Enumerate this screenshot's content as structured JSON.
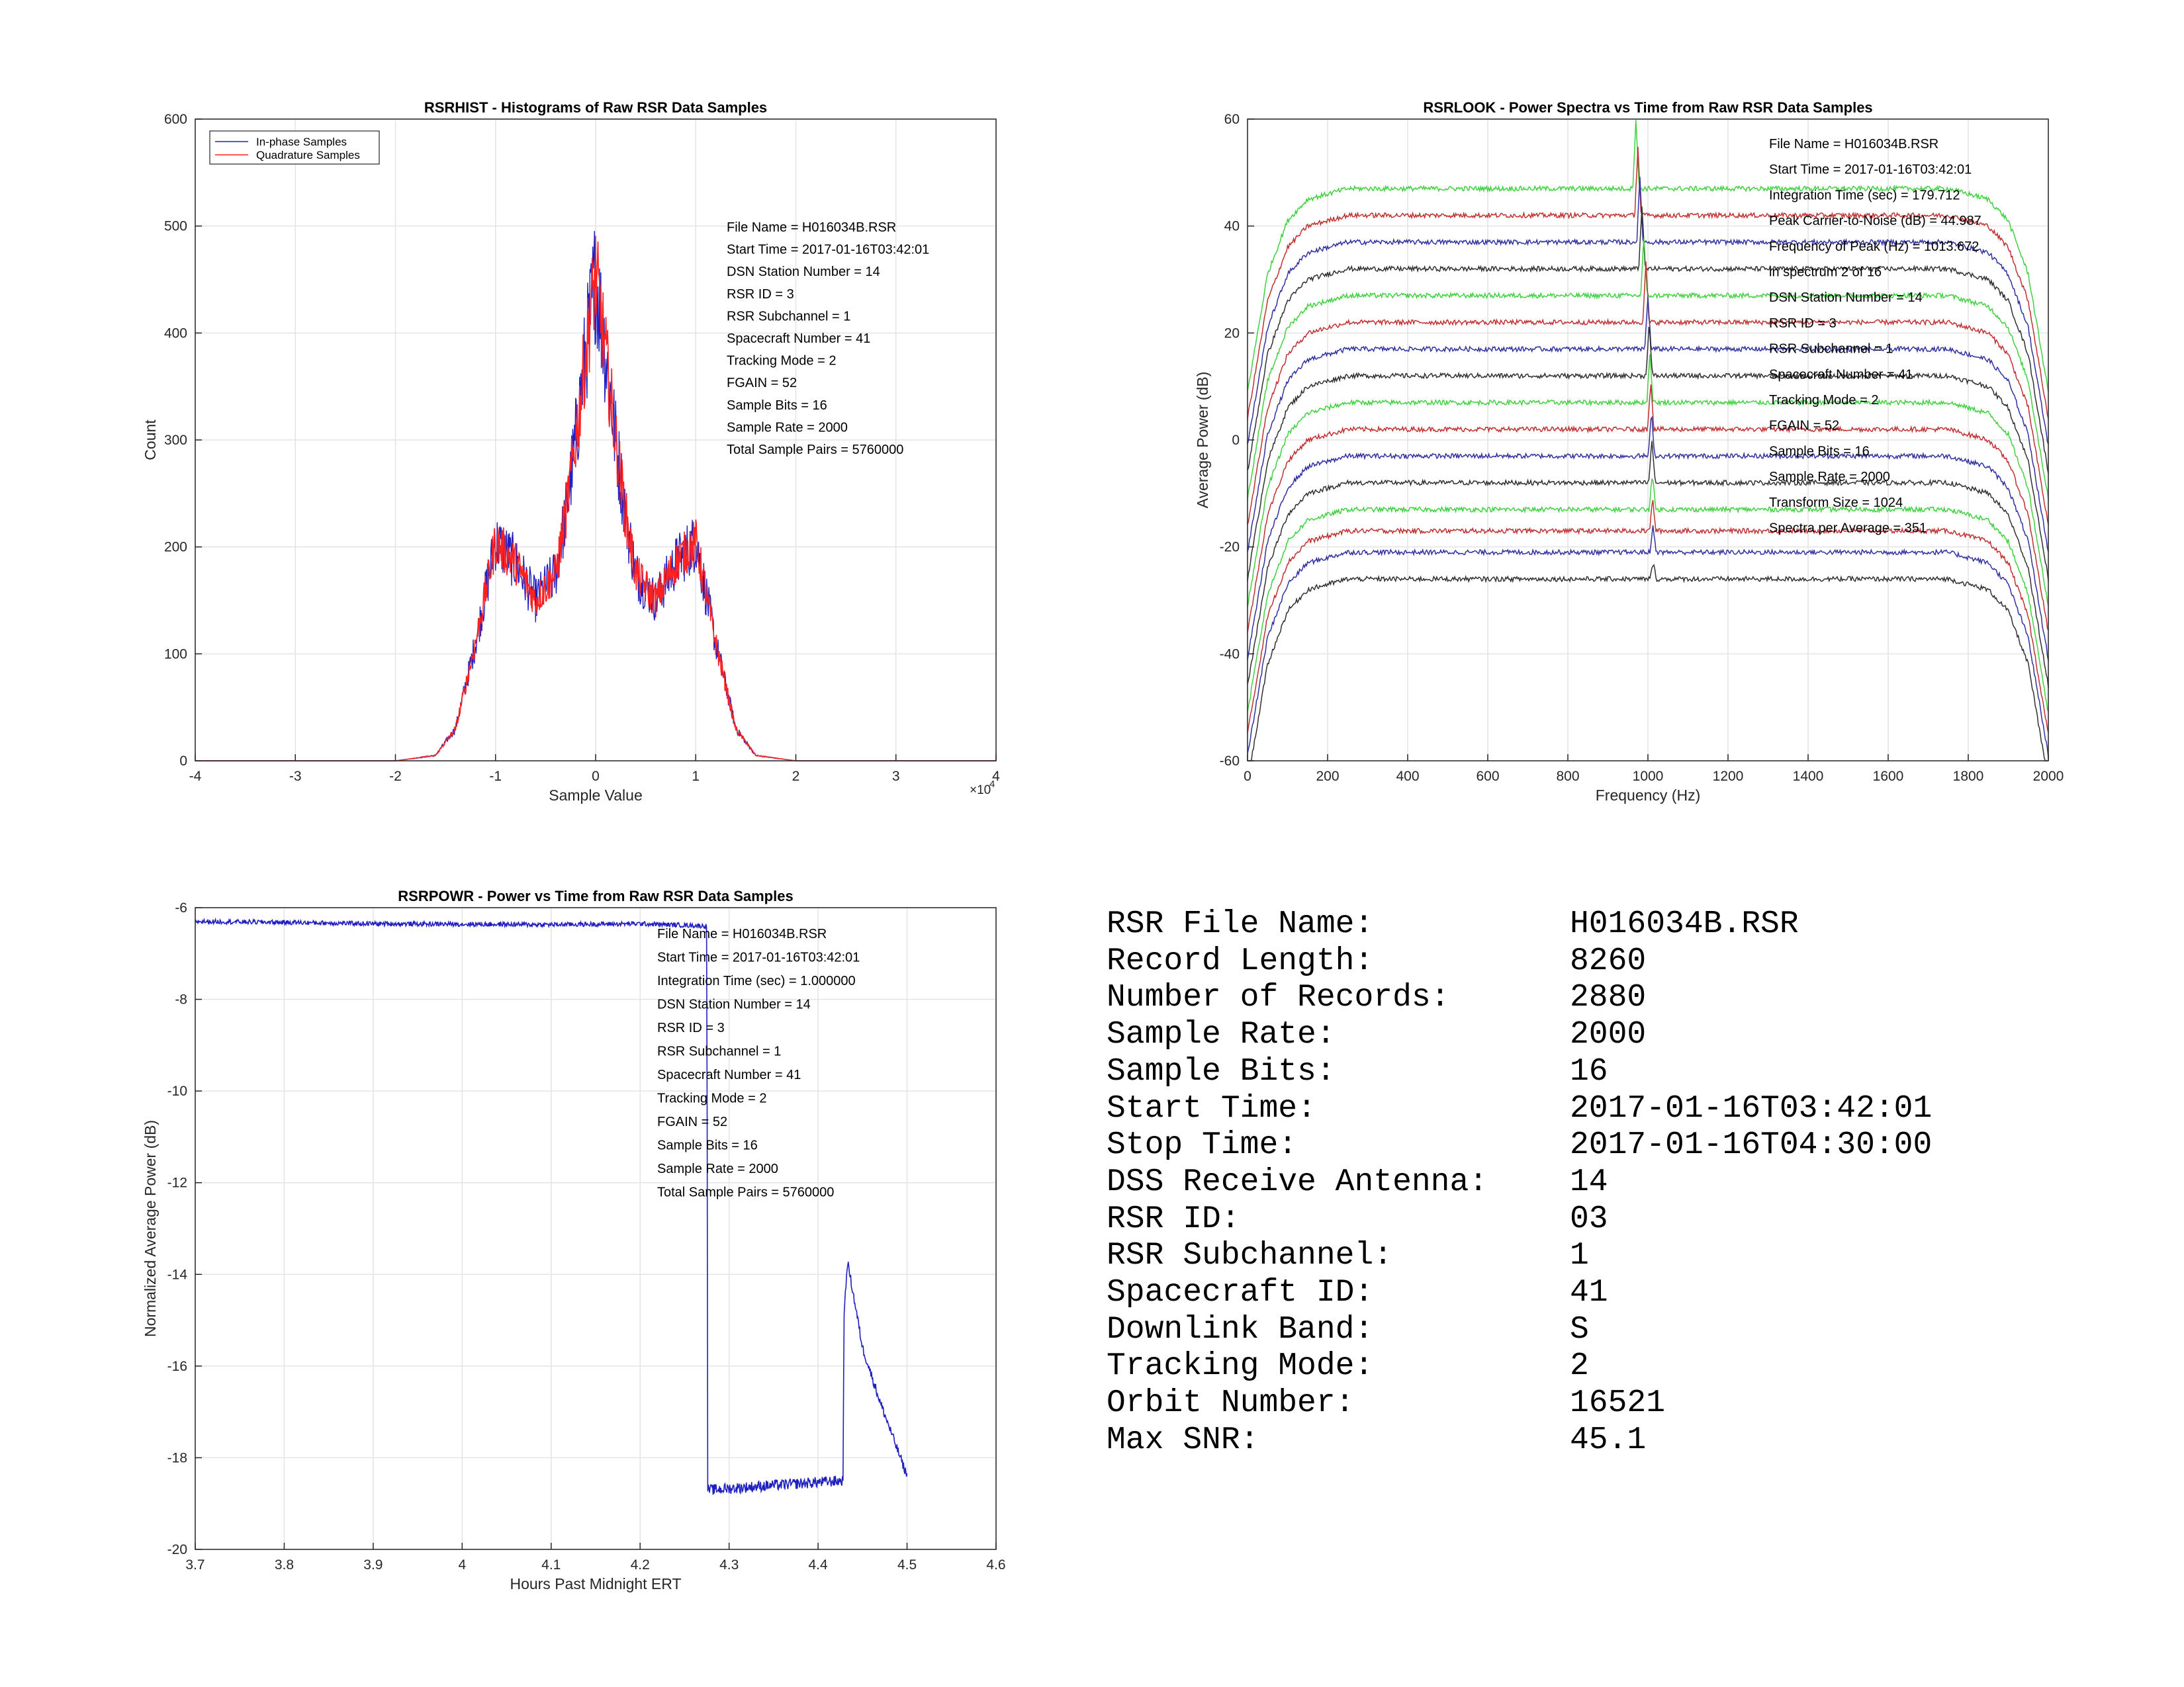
{
  "chart_data": [
    {
      "type": "histogram",
      "title": "RSRHIST - Histograms of Raw RSR Data Samples",
      "xlabel": "Sample Value",
      "ylabel": "Count",
      "x_exponent": "×10",
      "x_exponent_power": "4",
      "xlim": [
        -40000,
        40000
      ],
      "ylim": [
        0,
        600
      ],
      "x_ticks": [
        -40000,
        -30000,
        -20000,
        -10000,
        0,
        10000,
        20000,
        30000,
        40000
      ],
      "x_tick_labels": [
        "-4",
        "-3",
        "-2",
        "-1",
        "0",
        "1",
        "2",
        "3",
        "4"
      ],
      "y_ticks": [
        0,
        100,
        200,
        300,
        400,
        500,
        600
      ],
      "y_tick_labels": [
        "0",
        "100",
        "200",
        "300",
        "400",
        "500",
        "600"
      ],
      "grid": true,
      "legend": {
        "position": "top-left",
        "entries": [
          "In-phase Samples",
          "Quadrature Samples"
        ]
      },
      "series": [
        {
          "name": "In-phase Samples",
          "color": "#2020c0",
          "x": [
            -40000,
            -25000,
            -20000,
            -16000,
            -14000,
            -12000,
            -10000,
            -8000,
            -6000,
            -4000,
            -3000,
            -2000,
            -1000,
            0,
            1000,
            2000,
            3000,
            4000,
            6000,
            8000,
            10000,
            12000,
            14000,
            16000,
            20000,
            25000,
            40000
          ],
          "y": [
            0,
            0,
            0,
            5,
            30,
            110,
            205,
            185,
            150,
            175,
            230,
            300,
            380,
            455,
            380,
            300,
            230,
            175,
            150,
            185,
            205,
            110,
            30,
            5,
            0,
            0,
            0
          ]
        },
        {
          "name": "Quadrature Samples",
          "color": "#ff2020",
          "x": [
            -40000,
            -25000,
            -20000,
            -16000,
            -14000,
            -12000,
            -10000,
            -8000,
            -6000,
            -4000,
            -3000,
            -2000,
            -1000,
            0,
            1000,
            2000,
            3000,
            4000,
            6000,
            8000,
            10000,
            12000,
            14000,
            16000,
            20000,
            25000,
            40000
          ],
          "y": [
            0,
            0,
            0,
            5,
            30,
            110,
            205,
            185,
            150,
            175,
            230,
            300,
            380,
            455,
            380,
            300,
            230,
            175,
            150,
            185,
            205,
            110,
            30,
            5,
            0,
            0,
            0
          ]
        }
      ],
      "annotations": [
        "File Name = H016034B.RSR",
        "Start Time = 2017-01-16T03:42:01",
        "DSN Station Number = 14",
        "RSR ID = 3",
        "RSR Subchannel = 1",
        "Spacecraft Number = 41",
        "Tracking Mode = 2",
        "FGAIN = 52",
        "Sample Bits = 16",
        "Sample Rate = 2000",
        "Total Sample Pairs = 5760000"
      ]
    },
    {
      "type": "line",
      "title": "RSRLOOK - Power Spectra vs Time from Raw RSR Data Samples",
      "xlabel": "Frequency (Hz)",
      "ylabel": "Average Power (dB)",
      "xlim": [
        0,
        2000
      ],
      "ylim": [
        -60,
        60
      ],
      "x_ticks": [
        0,
        200,
        400,
        600,
        800,
        1000,
        1200,
        1400,
        1600,
        1800,
        2000
      ],
      "x_tick_labels": [
        "0",
        "200",
        "400",
        "600",
        "800",
        "1000",
        "1200",
        "1400",
        "1600",
        "1800",
        "2000"
      ],
      "y_ticks": [
        -60,
        -40,
        -20,
        0,
        20,
        40,
        60
      ],
      "y_tick_labels": [
        "-60",
        "-40",
        "-20",
        "0",
        "20",
        "40",
        "60"
      ],
      "grid": true,
      "series_shape": {
        "x": [
          0,
          50,
          100,
          150,
          250,
          1750,
          1850,
          1900,
          1950,
          2000
        ],
        "y_offset": [
          -38,
          -16,
          -6,
          -2,
          0,
          0,
          -2,
          -6,
          -16,
          -38
        ]
      },
      "series": [
        {
          "color": "#40d040",
          "level": 47,
          "peak_x": 970,
          "peak_height": 13
        },
        {
          "color": "#c03030",
          "level": 42,
          "peak_x": 975,
          "peak_height": 13
        },
        {
          "color": "#3030a0",
          "level": 37,
          "peak_x": 980,
          "peak_height": 12
        },
        {
          "color": "#303030",
          "level": 32,
          "peak_x": 985,
          "peak_height": 12
        },
        {
          "color": "#40d040",
          "level": 27,
          "peak_x": 990,
          "peak_height": 11
        },
        {
          "color": "#c03030",
          "level": 22,
          "peak_x": 995,
          "peak_height": 11
        },
        {
          "color": "#3030a0",
          "level": 17,
          "peak_x": 1000,
          "peak_height": 10
        },
        {
          "color": "#303030",
          "level": 12,
          "peak_x": 1003,
          "peak_height": 10
        },
        {
          "color": "#40d040",
          "level": 7,
          "peak_x": 1005,
          "peak_height": 9
        },
        {
          "color": "#c03030",
          "level": 2,
          "peak_x": 1007,
          "peak_height": 9
        },
        {
          "color": "#3030a0",
          "level": -3,
          "peak_x": 1009,
          "peak_height": 8
        },
        {
          "color": "#303030",
          "level": -8,
          "peak_x": 1010,
          "peak_height": 8
        },
        {
          "color": "#40d040",
          "level": -13,
          "peak_x": 1011,
          "peak_height": 7
        },
        {
          "color": "#c03030",
          "level": -17,
          "peak_x": 1012,
          "peak_height": 6
        },
        {
          "color": "#3030a0",
          "level": -21,
          "peak_x": 1013,
          "peak_height": 5
        },
        {
          "color": "#303030",
          "level": -26,
          "peak_x": 1013,
          "peak_height": 3
        }
      ],
      "annotations": [
        "File Name = H016034B.RSR",
        "Start Time = 2017-01-16T03:42:01",
        "Integration Time (sec) =  179.712",
        "Peak Carrier-to-Noise (dB) = 44.987",
        "Frequency of Peak (Hz) =  1013.672",
        "  in spectrum  2  of  16",
        "DSN Station Number = 14",
        "RSR ID = 3",
        "RSR Subchannel = 1",
        "Spacecraft Number = 41",
        "Tracking Mode = 2",
        "FGAIN = 52",
        "Sample Bits = 16",
        "Sample Rate = 2000",
        "Transform Size = 1024",
        "Spectra per Average = 351"
      ]
    },
    {
      "type": "line",
      "title": "RSRPOWR - Power vs Time from Raw RSR Data Samples",
      "xlabel": "Hours Past Midnight ERT",
      "ylabel": "Normalized Average Power (dB)",
      "xlim": [
        3.7,
        4.6
      ],
      "ylim": [
        -20,
        -6
      ],
      "x_ticks": [
        3.7,
        3.8,
        3.9,
        4.0,
        4.1,
        4.2,
        4.3,
        4.4,
        4.5,
        4.6
      ],
      "x_tick_labels": [
        "3.7",
        "3.8",
        "3.9",
        "4",
        "4.1",
        "4.2",
        "4.3",
        "4.4",
        "4.5",
        "4.6"
      ],
      "y_ticks": [
        -20,
        -18,
        -16,
        -14,
        -12,
        -10,
        -8,
        -6
      ],
      "y_tick_labels": [
        "-20",
        "-18",
        "-16",
        "-14",
        "-12",
        "-10",
        "-8",
        "-6"
      ],
      "grid": true,
      "series": [
        {
          "color": "#2020c0",
          "x": [
            3.7,
            3.8,
            3.9,
            4.0,
            4.1,
            4.2,
            4.275,
            4.276,
            4.28,
            4.35,
            4.428,
            4.429,
            4.433,
            4.45,
            4.47,
            4.5
          ],
          "y": [
            -6.3,
            -6.32,
            -6.35,
            -6.36,
            -6.37,
            -6.35,
            -6.4,
            -18.7,
            -18.7,
            -18.6,
            -18.5,
            -15.0,
            -13.7,
            -15.6,
            -16.8,
            -18.4
          ]
        }
      ],
      "annotations": [
        "File Name = H016034B.RSR",
        "Start Time = 2017-01-16T03:42:01",
        "Integration Time (sec) = 1.000000",
        "DSN Station Number = 14",
        "RSR ID = 3",
        "RSR Subchannel = 1",
        "Spacecraft Number = 41",
        "Tracking Mode = 2",
        "FGAIN = 52",
        "Sample Bits = 16",
        "Sample Rate = 2000",
        "Total Sample Pairs = 5760000"
      ]
    }
  ],
  "summary": [
    {
      "label": "RSR File Name:",
      "value": "H016034B.RSR"
    },
    {
      "label": "Record Length:",
      "value": "8260"
    },
    {
      "label": "Number of Records:",
      "value": "2880"
    },
    {
      "label": "Sample Rate:",
      "value": "2000"
    },
    {
      "label": "Sample Bits:",
      "value": "16"
    },
    {
      "label": "Start Time:",
      "value": "2017-01-16T03:42:01"
    },
    {
      "label": "Stop Time:",
      "value": "2017-01-16T04:30:00"
    },
    {
      "label": "DSS Receive Antenna:",
      "value": "14"
    },
    {
      "label": "RSR ID:",
      "value": "03"
    },
    {
      "label": "RSR Subchannel:",
      "value": "1"
    },
    {
      "label": "Spacecraft ID:",
      "value": "41"
    },
    {
      "label": "Downlink Band:",
      "value": "S"
    },
    {
      "label": "Tracking Mode:",
      "value": "2"
    },
    {
      "label": "Orbit Number:",
      "value": "16521"
    },
    {
      "label": "Max SNR:",
      "value": "45.1"
    }
  ]
}
